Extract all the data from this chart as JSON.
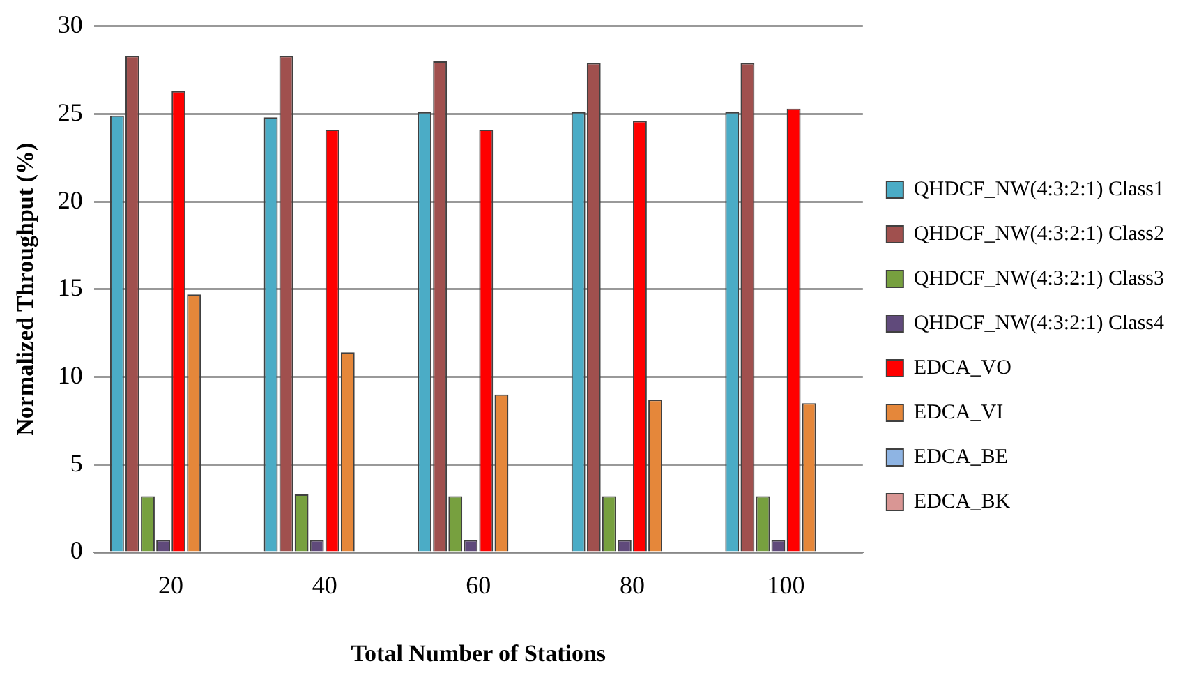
{
  "chart_data": {
    "type": "bar",
    "xlabel": "Total Number of Stations",
    "ylabel": "Normalized Throughput (%)",
    "categories": [
      "20",
      "40",
      "60",
      "80",
      "100"
    ],
    "ylim": [
      0,
      30
    ],
    "yticks": [
      0,
      5,
      10,
      15,
      20,
      25,
      30
    ],
    "grid": "y",
    "legend": "right",
    "series": [
      {
        "name": "QHDCF_NW(4:3:2:1) Class1",
        "color": "#4bacc6",
        "values": [
          24.9,
          24.8,
          25.1,
          25.1,
          25.1
        ]
      },
      {
        "name": "QHDCF_NW(4:3:2:1) Class2",
        "color": "#a0504e",
        "values": [
          28.3,
          28.3,
          28.0,
          27.9,
          27.9
        ]
      },
      {
        "name": "QHDCF_NW(4:3:2:1) Class3",
        "color": "#77a03f",
        "values": [
          3.2,
          3.3,
          3.2,
          3.2,
          3.2
        ]
      },
      {
        "name": "QHDCF_NW(4:3:2:1) Class4",
        "color": "#604a7b",
        "values": [
          0.7,
          0.7,
          0.7,
          0.7,
          0.7
        ]
      },
      {
        "name": "EDCA_VO",
        "color": "#ff0000",
        "values": [
          26.3,
          24.1,
          24.1,
          24.6,
          25.3
        ]
      },
      {
        "name": "EDCA_VI",
        "color": "#e5873a",
        "values": [
          14.7,
          11.4,
          9.0,
          8.7,
          8.5
        ]
      },
      {
        "name": "EDCA_BE",
        "color": "#8eb4e3",
        "values": [
          0,
          0,
          0,
          0,
          0
        ]
      },
      {
        "name": "EDCA_BK",
        "color": "#d99694",
        "values": [
          0,
          0,
          0,
          0,
          0
        ]
      }
    ]
  }
}
